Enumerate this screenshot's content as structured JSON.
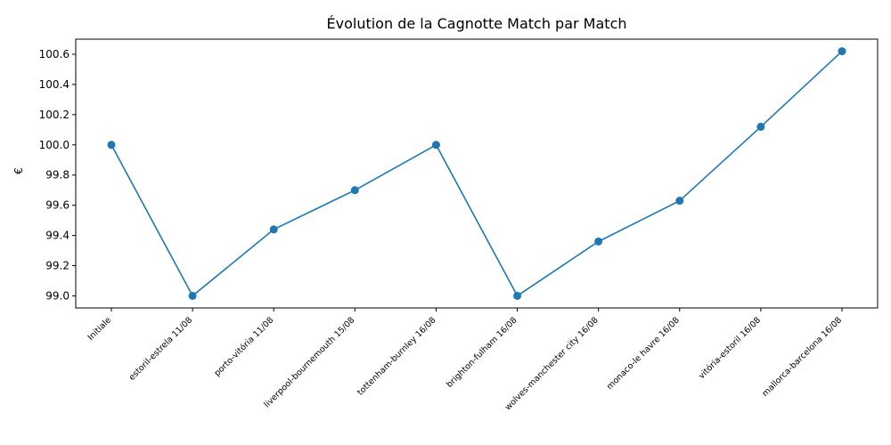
{
  "chart_data": {
    "type": "line",
    "title": "Évolution de la Cagnotte Match par Match",
    "xlabel": "",
    "ylabel": "€",
    "categories": [
      "Initiale",
      "estoril-estrela 11/08",
      "porto-vitória 11/08",
      "liverpool-bournemouth 15/08",
      "tottenham-burnley 16/08",
      "brighton-fulham 16/08",
      "wolves-manchester city 16/08",
      "monaco-le havre 16/08",
      "vitória-estoril 16/08",
      "mallorca-barcelona 16/08"
    ],
    "series": [
      {
        "values": [
          100.0,
          99.0,
          99.44,
          99.7,
          100.0,
          99.0,
          99.36,
          99.63,
          100.12,
          100.62
        ],
        "color": "#1f77b4"
      }
    ],
    "ylim": [
      98.92,
      100.7
    ],
    "yticks": [
      99.0,
      99.2,
      99.4,
      99.6,
      99.8,
      100.0,
      100.2,
      100.4,
      100.6
    ],
    "ytick_labels": [
      "99.0",
      "99.2",
      "99.4",
      "99.6",
      "99.8",
      "100.0",
      "100.2",
      "100.4",
      "100.6"
    ],
    "grid": false,
    "legend": "none",
    "marker": "circle"
  }
}
